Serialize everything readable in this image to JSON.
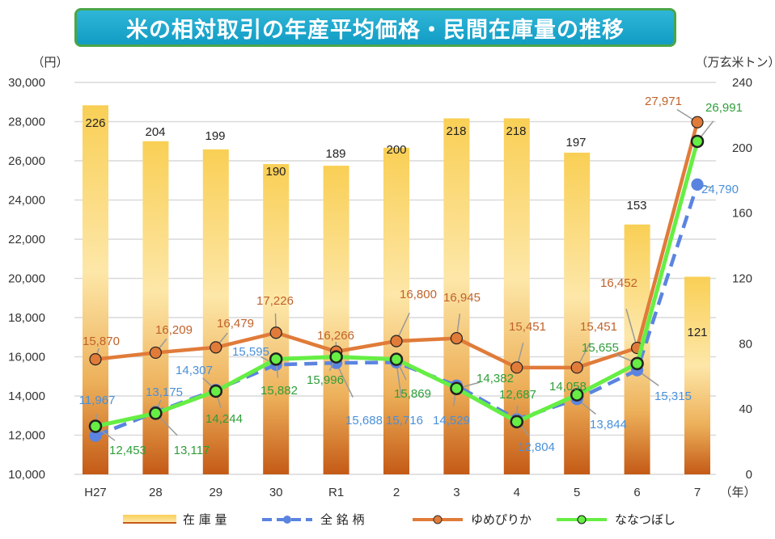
{
  "title": "米の相対取引の年産平均価格・民間在庫量の推移",
  "chart_data": {
    "type": "bar+line",
    "title": "米の相対取引の年産平均価格・民間在庫量の推移",
    "categories": [
      "H27",
      "28",
      "29",
      "30",
      "R1",
      "2",
      "3",
      "4",
      "5",
      "6",
      "7"
    ],
    "xunit": "（年）",
    "yleft": {
      "unit": "（円）",
      "range": [
        10000,
        30000
      ],
      "ticks": [
        "10,000",
        "12,000",
        "14,000",
        "16,000",
        "18,000",
        "20,000",
        "22,000",
        "24,000",
        "26,000",
        "28,000",
        "30,000"
      ]
    },
    "yright": {
      "unit": "（万玄米トン）",
      "range": [
        0,
        240
      ],
      "ticks": [
        "0",
        "40",
        "80",
        "120",
        "160",
        "200",
        "240"
      ]
    },
    "grid": true,
    "legend_position": "bottom",
    "series": [
      {
        "name": "在 庫 量",
        "type": "bar",
        "axis": "right",
        "color": "#F6C343",
        "values": [
          226,
          204,
          199,
          190,
          189,
          200,
          218,
          218,
          197,
          153,
          121
        ]
      },
      {
        "name": "全 銘 柄",
        "type": "line-dashed",
        "axis": "left",
        "color": "#5B84E0",
        "label_color": "#4A90D9",
        "values": [
          11967,
          13175,
          14307,
          15595,
          15688,
          15716,
          14529,
          12804,
          13844,
          15315,
          24790
        ]
      },
      {
        "name": "ゆめぴりか",
        "type": "line",
        "axis": "left",
        "color": "#E07B39",
        "label_color": "#C0622A",
        "values": [
          15870,
          16209,
          16479,
          17226,
          16266,
          16800,
          16945,
          15451,
          15451,
          16452,
          27971
        ]
      },
      {
        "name": "ななつぼし",
        "type": "line",
        "axis": "left",
        "color": "#66EE44",
        "label_color": "#2E9E3A",
        "values": [
          12453,
          13117,
          14244,
          15882,
          15996,
          15869,
          14382,
          12687,
          14058,
          15655,
          26991
        ]
      }
    ]
  }
}
